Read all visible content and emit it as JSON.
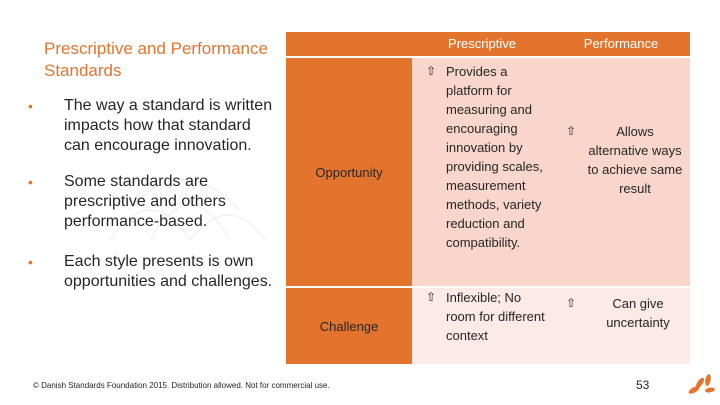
{
  "slide": {
    "title": "Prescriptive and Performance Standards",
    "bullets": [
      "The way a standard is written impacts how that standard can encourage innovation.",
      "Some standards are prescriptive and others performance-based.",
      "Each style presents is own opportunities and challenges."
    ],
    "bullet_glyph": "•"
  },
  "table": {
    "headers": [
      "",
      "Prescriptive",
      "Performance"
    ],
    "rows": [
      {
        "label": "Opportunity",
        "prescriptive": "Provides a platform for measuring and encouraging innovation by providing scales, measurement methods, variety reduction and compatibility.",
        "performance": "Allows alternative ways to achieve same result"
      },
      {
        "label": "Challenge",
        "prescriptive": "Inflexible; No room for different context",
        "performance": "Can give uncertainty"
      }
    ],
    "arrow_glyph": "⇧"
  },
  "footer": {
    "copyright": "© Danish Standards Foundation 2015. Distribution allowed. Not for commercial use.",
    "page_number": "53"
  },
  "colors": {
    "accent": "#e2742e",
    "row1_fill": "#f8d6cb",
    "row2_fill": "#fbeae5"
  }
}
